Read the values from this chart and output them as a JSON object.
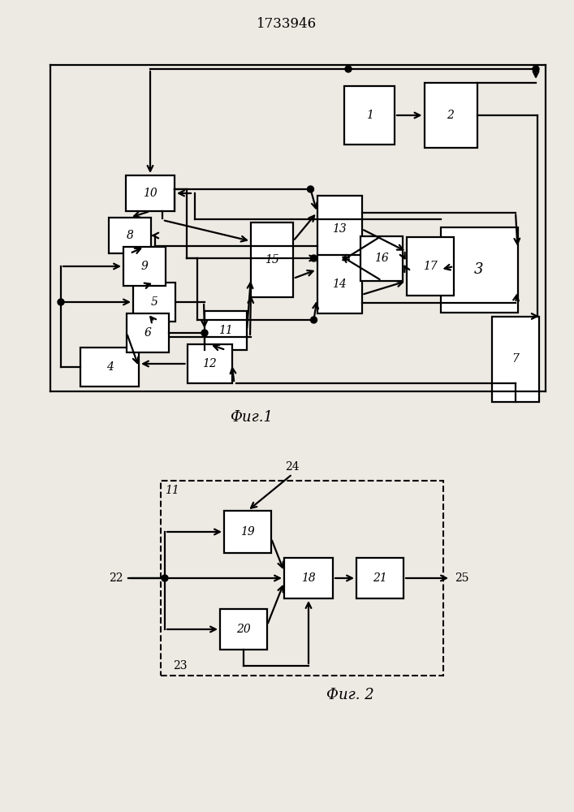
{
  "title": "1733946",
  "fig1_label": "Фиг.1",
  "fig2_label": "Фиг. 2",
  "bg_color": "#ede9e3"
}
